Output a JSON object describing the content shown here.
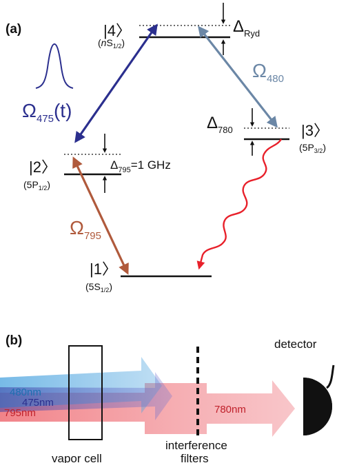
{
  "panel_a": {
    "label": "(a)",
    "levels": {
      "l4": {
        "ket": "|4〉",
        "state_prefix": "(",
        "state_n": "n",
        "state_main": "S",
        "state_sub": "1/2",
        "state_suffix": ")"
      },
      "l3": {
        "ket": "|3〉",
        "state_prefix": "(5P",
        "state_sub": "3/2",
        "state_suffix": ")"
      },
      "l2": {
        "ket": "|2〉",
        "state_prefix": "(5P",
        "state_sub": "1/2",
        "state_suffix": ")"
      },
      "l1": {
        "ket": "|1〉",
        "state_prefix": "(5S",
        "state_sub": "1/2",
        "state_suffix": ")"
      }
    },
    "detunings": {
      "ryd": {
        "symbol": "Δ",
        "sub": "Ryd"
      },
      "d780": {
        "symbol": "Δ",
        "sub": "780"
      },
      "d795": {
        "symbol": "Δ",
        "sub": "795",
        "value": "=1 GHz"
      }
    },
    "couplings": {
      "omega480": {
        "symbol": "Ω",
        "sub": "480",
        "color": "#6b87a6"
      },
      "omega475": {
        "symbol": "Ω",
        "sub": "475",
        "suffix": "(t)",
        "color": "#2b2f8e"
      },
      "omega795": {
        "symbol": "Ω",
        "sub": "795",
        "color": "#b05a3c"
      }
    },
    "decay_color": "#e8202a",
    "pulse_color": "#2b2f8e"
  },
  "panel_b": {
    "label": "(b)",
    "beams": {
      "b480": {
        "label": "480nm",
        "color": "#4aa3df"
      },
      "b475": {
        "label": "475nm",
        "color": "#3b3fa3"
      },
      "b795": {
        "label": "795nm",
        "color": "#e8303a"
      },
      "b780": {
        "label": "780nm",
        "color": "#e8303a"
      }
    },
    "vapor_cell_label": "vapor cell",
    "filters_label_line1": "interference",
    "filters_label_line2": "filters",
    "detector_label": "detector"
  }
}
